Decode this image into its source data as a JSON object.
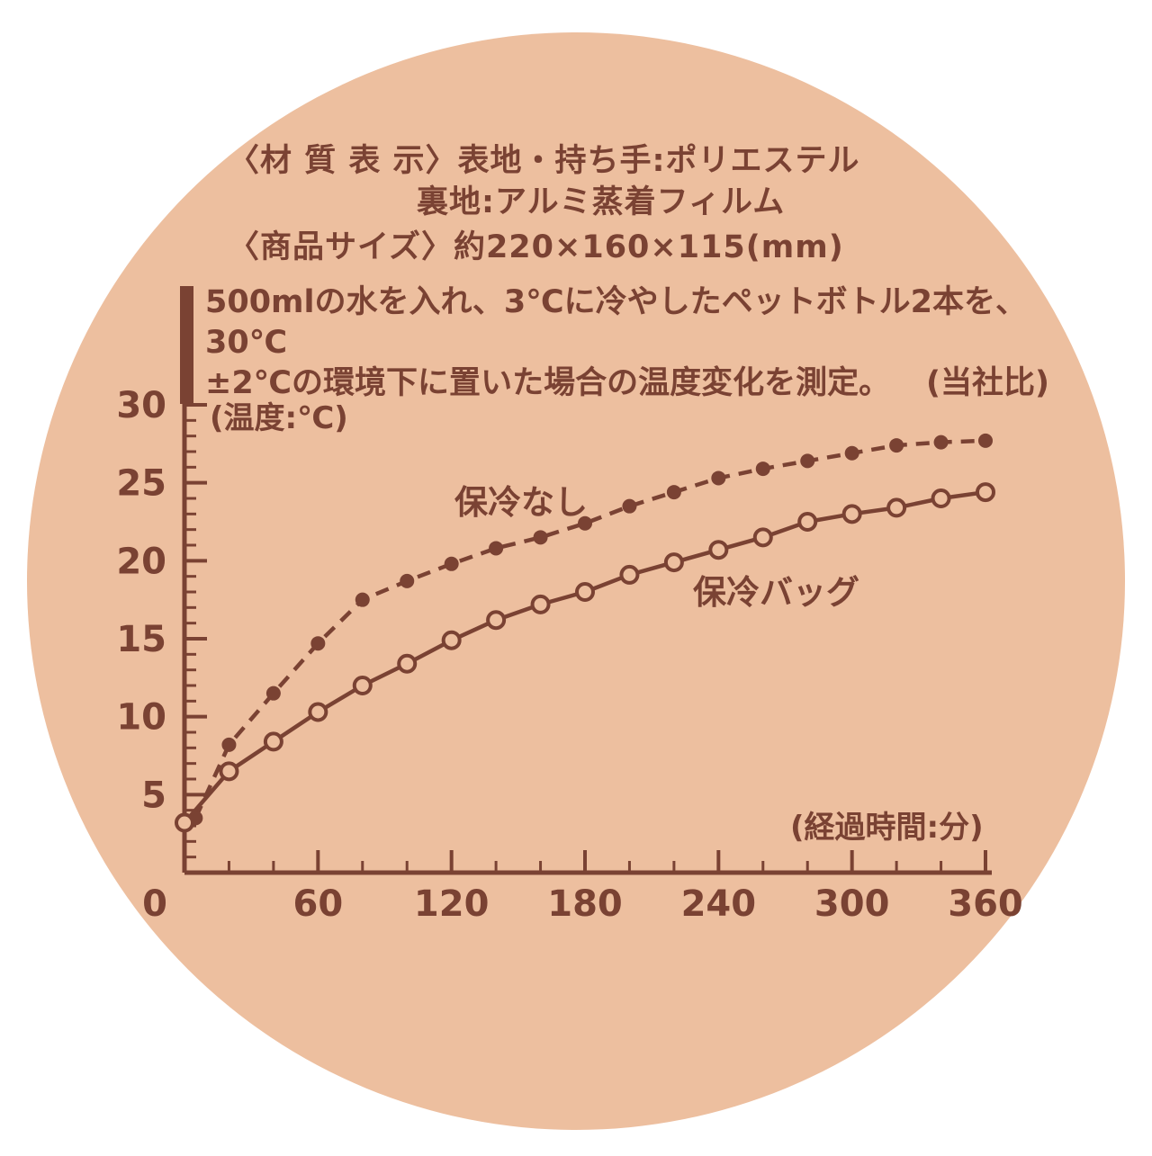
{
  "bg_color": "#edbf9f",
  "ink": "#7a4233",
  "header": {
    "line1": "〈材 質 表 示〉表地・持ち手:ポリエステル",
    "line2": "裏地:アルミ蒸着フィルム",
    "line3": "〈商品サイズ〉約220×160×115(mm)",
    "note_line1": "500mlの水を入れ、3℃に冷やしたペットボトル2本を、30℃",
    "note_line2": "±2℃の環境下に置いた場合の温度変化を測定。",
    "note_suffix": "(当社比)"
  },
  "chart_data": {
    "type": "line",
    "title": "",
    "ylabel": "(温度:℃)",
    "xlabel": "(経過時間:分)",
    "xlim": [
      0,
      360
    ],
    "ylim": [
      0,
      30
    ],
    "grid": false,
    "legend_position": "inline-annotations",
    "x_major_ticks": [
      0,
      60,
      120,
      180,
      240,
      300,
      360
    ],
    "x_minor_step": 20,
    "y_major_ticks": [
      5,
      10,
      15,
      20,
      25,
      30
    ],
    "y_minor_step": 1,
    "series": [
      {
        "name": "保冷なし",
        "style": "dashed",
        "marker": "filled",
        "x": [
          5,
          20,
          40,
          60,
          80,
          100,
          120,
          140,
          160,
          180,
          200,
          220,
          240,
          260,
          280,
          300,
          320,
          340,
          360
        ],
        "values": [
          3.5,
          8.2,
          11.5,
          14.7,
          17.5,
          18.7,
          19.8,
          20.8,
          21.5,
          22.4,
          23.5,
          24.4,
          25.3,
          25.9,
          26.4,
          26.9,
          27.4,
          27.6,
          27.7
        ]
      },
      {
        "name": "保冷バッグ",
        "style": "solid",
        "marker": "open",
        "x": [
          0,
          20,
          40,
          60,
          80,
          100,
          120,
          140,
          160,
          180,
          200,
          220,
          240,
          260,
          280,
          300,
          320,
          340,
          360
        ],
        "values": [
          3.2,
          6.5,
          8.4,
          10.3,
          12.0,
          13.4,
          14.9,
          16.2,
          17.2,
          18.0,
          19.1,
          19.9,
          20.7,
          21.5,
          22.5,
          23.0,
          23.4,
          24.0,
          24.4
        ]
      }
    ]
  }
}
